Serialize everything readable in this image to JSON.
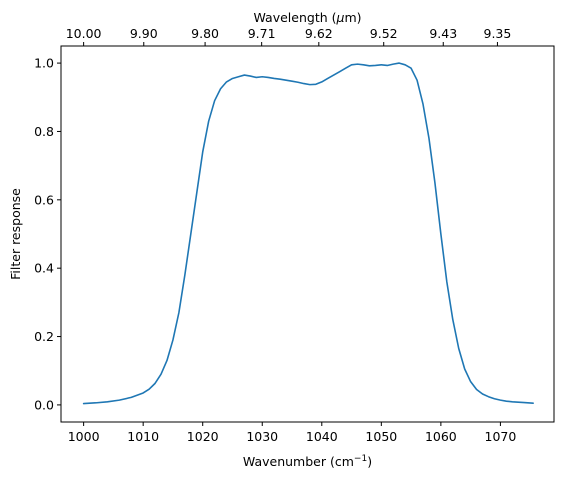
{
  "chart_data": {
    "type": "line",
    "title": "",
    "xlabel": "Wavenumber (cm",
    "xlabel_superscript": "−1",
    "xlabel_suffix": ")",
    "ylabel": "Filter response",
    "top_xlabel": "Wavelength (",
    "top_xlabel_symbol": "μ",
    "top_xlabel_suffix": "m)",
    "xlim": [
      996.2,
      1079.0
    ],
    "ylim": [
      -0.05,
      1.05
    ],
    "xticks": [
      1000,
      1010,
      1020,
      1030,
      1040,
      1050,
      1060,
      1070
    ],
    "xtick_labels": [
      "1000",
      "1010",
      "1020",
      "1030",
      "1040",
      "1050",
      "1060",
      "1070"
    ],
    "yticks": [
      0.0,
      0.2,
      0.4,
      0.6,
      0.8,
      1.0
    ],
    "ytick_labels": [
      "0.0",
      "0.2",
      "0.4",
      "0.6",
      "0.8",
      "1.0"
    ],
    "top_xticks": [
      1000,
      1010.1,
      1020.4,
      1029.9,
      1039.5,
      1050.4,
      1060.4,
      1069.5
    ],
    "top_xtick_labels": [
      "10.00",
      "9.90",
      "9.80",
      "9.71",
      "9.62",
      "9.52",
      "9.43",
      "9.35"
    ],
    "grid": false,
    "legend": "none",
    "series": [
      {
        "color": "#1f77b4",
        "x": [
          1000,
          1002,
          1004,
          1006,
          1008,
          1010,
          1011,
          1012,
          1013,
          1014,
          1015,
          1016,
          1017,
          1018,
          1019,
          1020,
          1021,
          1022,
          1023,
          1024,
          1025,
          1026,
          1027,
          1028,
          1029,
          1030,
          1031,
          1032,
          1033,
          1034,
          1035,
          1036,
          1037,
          1038,
          1039,
          1040,
          1041,
          1042,
          1043,
          1044,
          1045,
          1046,
          1047,
          1048,
          1049,
          1050,
          1051,
          1052,
          1053,
          1054,
          1055,
          1056,
          1057,
          1058,
          1059,
          1060,
          1061,
          1062,
          1063,
          1064,
          1065,
          1066,
          1067,
          1068,
          1069,
          1070,
          1071,
          1072,
          1073,
          1074,
          1075.5
        ],
        "y": [
          0.004,
          0.006,
          0.009,
          0.014,
          0.022,
          0.035,
          0.046,
          0.063,
          0.09,
          0.13,
          0.19,
          0.27,
          0.38,
          0.5,
          0.62,
          0.74,
          0.83,
          0.89,
          0.925,
          0.945,
          0.955,
          0.96,
          0.965,
          0.962,
          0.958,
          0.96,
          0.958,
          0.955,
          0.953,
          0.95,
          0.947,
          0.944,
          0.94,
          0.937,
          0.938,
          0.945,
          0.955,
          0.965,
          0.975,
          0.985,
          0.995,
          0.997,
          0.995,
          0.992,
          0.993,
          0.995,
          0.993,
          0.997,
          1.0,
          0.995,
          0.985,
          0.95,
          0.88,
          0.78,
          0.65,
          0.5,
          0.36,
          0.25,
          0.165,
          0.105,
          0.068,
          0.045,
          0.032,
          0.024,
          0.018,
          0.014,
          0.011,
          0.009,
          0.008,
          0.007,
          0.005
        ]
      }
    ]
  }
}
